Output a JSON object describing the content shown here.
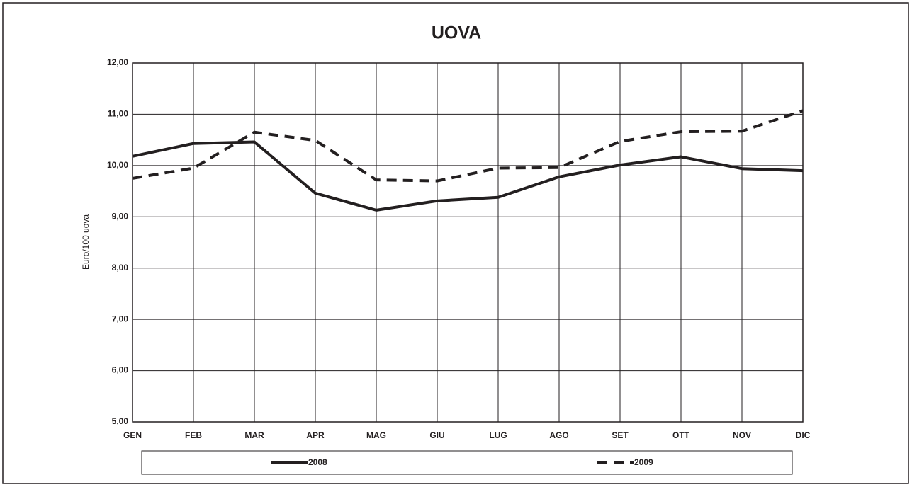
{
  "chart_data": {
    "type": "line",
    "title": "UOVA",
    "y_label": "Euro/100 uova",
    "categories": [
      "GEN",
      "FEB",
      "MAR",
      "APR",
      "MAG",
      "GIU",
      "LUG",
      "AGO",
      "SET",
      "OTT",
      "NOV",
      "DIC"
    ],
    "series": [
      {
        "name": "2008",
        "color": "#231f20",
        "dash": "solid",
        "values": [
          10.18,
          10.43,
          10.46,
          9.46,
          9.13,
          9.31,
          9.38,
          9.78,
          10.01,
          10.17,
          9.94,
          9.9
        ]
      },
      {
        "name": "2009",
        "color": "#231f20",
        "dash": "dashed",
        "values": [
          9.75,
          9.95,
          10.65,
          10.49,
          9.72,
          9.7,
          9.95,
          9.96,
          10.47,
          10.66,
          10.67,
          11.07
        ]
      }
    ],
    "ylim": [
      5,
      12
    ],
    "yticks": [
      {
        "value": 5,
        "label": "5,00"
      },
      {
        "value": 6,
        "label": "6,00"
      },
      {
        "value": 7,
        "label": "7,00"
      },
      {
        "value": 8,
        "label": "8,00"
      },
      {
        "value": 9,
        "label": "9,00"
      },
      {
        "value": 10,
        "label": "10,00"
      },
      {
        "value": 11,
        "label": "11,00"
      },
      {
        "value": 12,
        "label": "12,00"
      }
    ],
    "grid": true,
    "legend": "bottom"
  }
}
